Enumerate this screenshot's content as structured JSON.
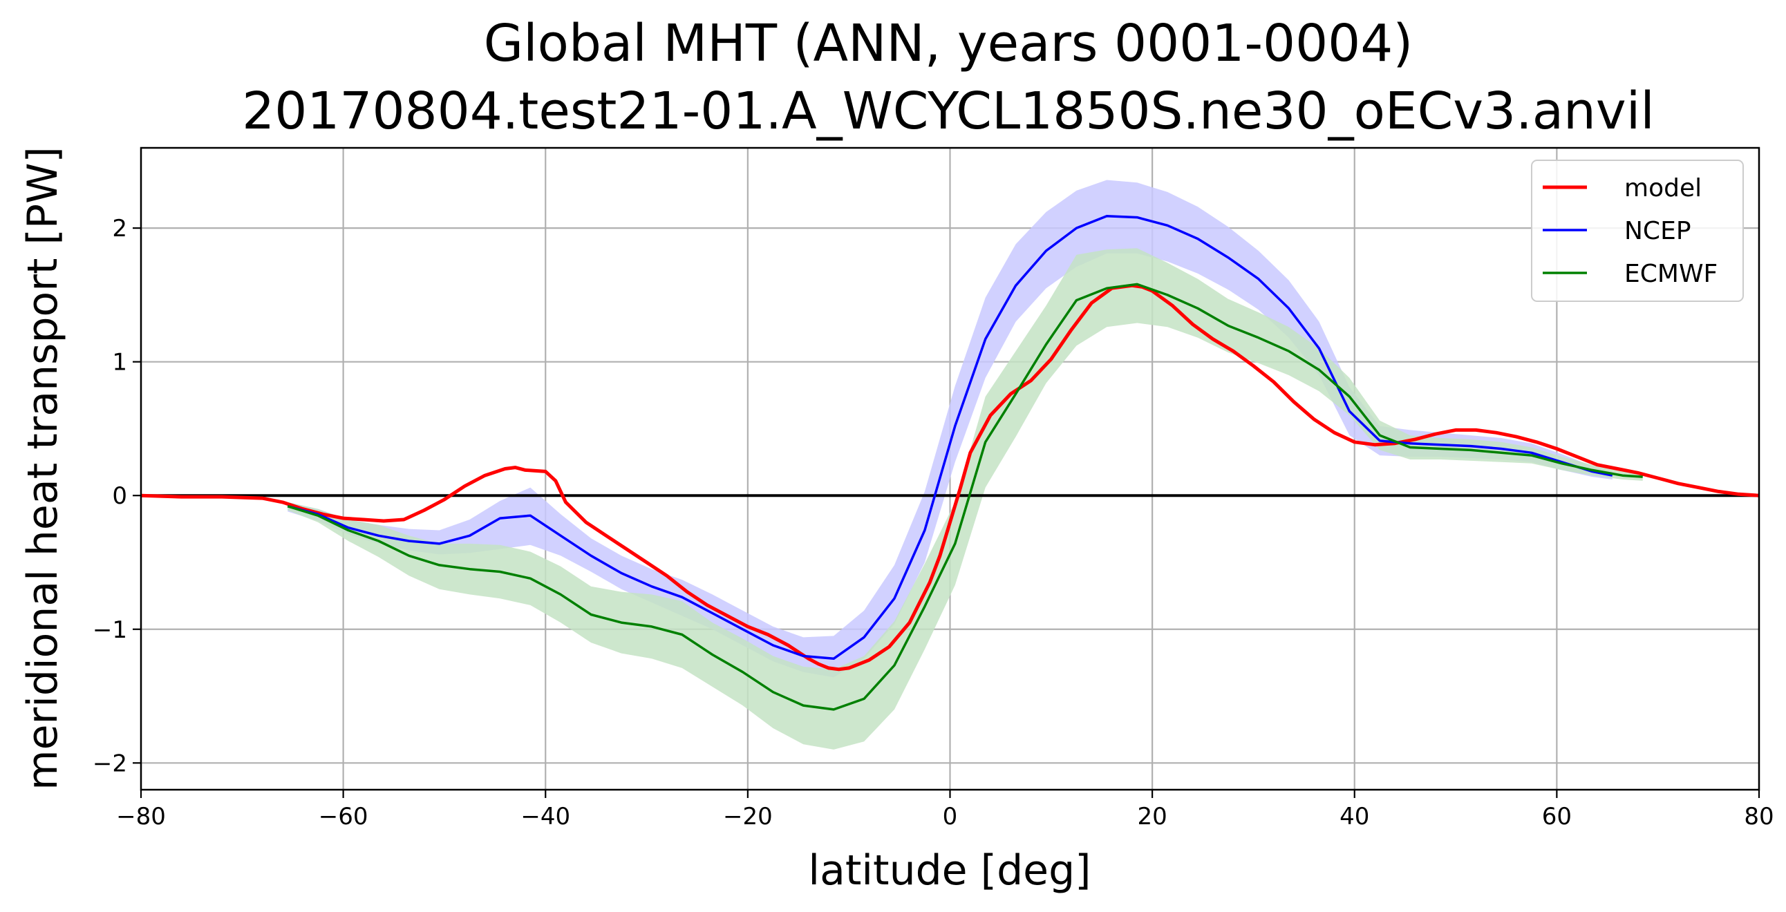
{
  "chart_data": {
    "type": "line",
    "title": [
      "Global MHT (ANN, years 0001-0004)",
      "20170804.test21-01.A_WCYCL1850S.ne30_oECv3.anvil"
    ],
    "xlabel": "latitude [deg]",
    "ylabel": "meridional heat transport [PW]",
    "xlim": [
      -80,
      80
    ],
    "ylim": [
      -2.2,
      2.6
    ],
    "xticks": [
      -80,
      -60,
      -40,
      -20,
      0,
      20,
      40,
      60,
      80
    ],
    "xtick_labels": [
      "−80",
      "−60",
      "−40",
      "−20",
      "0",
      "20",
      "40",
      "60",
      "80"
    ],
    "yticks": [
      -2,
      -1,
      0,
      1,
      2
    ],
    "ytick_labels": [
      "−2",
      "−1",
      "0",
      "1",
      "2"
    ],
    "grid": true,
    "legend_position": "top-right",
    "zero_line": true,
    "series": [
      {
        "name": "model",
        "color": "#ff0000",
        "x": [
          -80,
          -76,
          -72,
          -68,
          -66,
          -64,
          -62,
          -60,
          -58,
          -56,
          -54,
          -52,
          -50,
          -48,
          -46,
          -44,
          -43,
          -42,
          -40,
          -39,
          -38,
          -36,
          -34,
          -32,
          -30,
          -28,
          -26,
          -24,
          -22,
          -20,
          -18,
          -16,
          -14,
          -13,
          -12,
          -11,
          -10,
          -8,
          -6,
          -4,
          -2,
          -1,
          0,
          1,
          2,
          4,
          6,
          8,
          10,
          12,
          14,
          16,
          18,
          19,
          20,
          22,
          24,
          26,
          28,
          30,
          32,
          34,
          36,
          38,
          40,
          42,
          44,
          46,
          48,
          50,
          52,
          54,
          56,
          58,
          60,
          62,
          64,
          66,
          68,
          70,
          72,
          74,
          76,
          78,
          80
        ],
        "y": [
          0.0,
          -0.01,
          -0.01,
          -0.02,
          -0.05,
          -0.1,
          -0.14,
          -0.17,
          -0.18,
          -0.19,
          -0.18,
          -0.11,
          -0.03,
          0.07,
          0.15,
          0.2,
          0.21,
          0.19,
          0.18,
          0.11,
          -0.05,
          -0.2,
          -0.3,
          -0.4,
          -0.5,
          -0.6,
          -0.72,
          -0.82,
          -0.9,
          -0.98,
          -1.04,
          -1.12,
          -1.22,
          -1.26,
          -1.29,
          -1.3,
          -1.29,
          -1.23,
          -1.13,
          -0.95,
          -0.65,
          -0.45,
          -0.2,
          0.05,
          0.32,
          0.6,
          0.76,
          0.86,
          1.02,
          1.24,
          1.44,
          1.55,
          1.57,
          1.56,
          1.53,
          1.42,
          1.28,
          1.17,
          1.08,
          0.97,
          0.85,
          0.7,
          0.57,
          0.47,
          0.4,
          0.38,
          0.39,
          0.42,
          0.46,
          0.49,
          0.49,
          0.47,
          0.44,
          0.4,
          0.35,
          0.29,
          0.23,
          0.2,
          0.17,
          0.13,
          0.09,
          0.06,
          0.03,
          0.01,
          0.0
        ]
      },
      {
        "name": "NCEP",
        "color": "#0000ff",
        "band_color": "#c9c9ff",
        "x": [
          -65.5,
          -62.5,
          -59.5,
          -56.5,
          -53.5,
          -50.5,
          -47.5,
          -44.5,
          -41.5,
          -38.5,
          -35.5,
          -32.5,
          -29.5,
          -26.5,
          -23.5,
          -20.5,
          -17.5,
          -14.5,
          -11.5,
          -8.5,
          -5.5,
          -2.5,
          0.5,
          3.5,
          6.5,
          9.5,
          12.5,
          15.5,
          18.5,
          21.5,
          24.5,
          27.5,
          30.5,
          33.5,
          36.5,
          39.5,
          42.5,
          45.5,
          48.5,
          51.5,
          54.5,
          57.5,
          60.5,
          63.5,
          65.5
        ],
        "y": [
          -0.08,
          -0.14,
          -0.24,
          -0.3,
          -0.34,
          -0.36,
          -0.3,
          -0.17,
          -0.15,
          -0.3,
          -0.45,
          -0.58,
          -0.68,
          -0.76,
          -0.88,
          -1.0,
          -1.12,
          -1.2,
          -1.22,
          -1.06,
          -0.77,
          -0.26,
          0.52,
          1.17,
          1.57,
          1.83,
          2.0,
          2.09,
          2.08,
          2.02,
          1.92,
          1.78,
          1.62,
          1.4,
          1.1,
          0.63,
          0.41,
          0.39,
          0.38,
          0.37,
          0.35,
          0.32,
          0.25,
          0.18,
          0.15
        ],
        "band_lower": [
          -0.12,
          -0.19,
          -0.29,
          -0.36,
          -0.41,
          -0.44,
          -0.43,
          -0.4,
          -0.37,
          -0.45,
          -0.57,
          -0.7,
          -0.8,
          -0.9,
          -1.0,
          -1.12,
          -1.24,
          -1.32,
          -1.36,
          -1.22,
          -0.96,
          -0.5,
          0.25,
          0.88,
          1.3,
          1.55,
          1.71,
          1.81,
          1.81,
          1.75,
          1.66,
          1.54,
          1.39,
          1.18,
          0.9,
          0.45,
          0.3,
          0.29,
          0.29,
          0.28,
          0.27,
          0.25,
          0.19,
          0.14,
          0.12
        ],
        "band_upper": [
          -0.05,
          -0.1,
          -0.18,
          -0.22,
          -0.25,
          -0.26,
          -0.18,
          -0.04,
          0.06,
          -0.14,
          -0.32,
          -0.45,
          -0.55,
          -0.63,
          -0.74,
          -0.86,
          -0.98,
          -1.06,
          -1.05,
          -0.86,
          -0.52,
          0.03,
          0.82,
          1.48,
          1.88,
          2.12,
          2.28,
          2.36,
          2.34,
          2.27,
          2.16,
          2.01,
          1.83,
          1.61,
          1.3,
          0.81,
          0.52,
          0.49,
          0.47,
          0.45,
          0.43,
          0.39,
          0.31,
          0.22,
          0.18
        ]
      },
      {
        "name": "ECMWF",
        "color": "#008000",
        "band_color": "#c4e3c4",
        "x": [
          -65.5,
          -62.5,
          -59.5,
          -56.5,
          -53.5,
          -50.5,
          -47.5,
          -44.5,
          -41.5,
          -38.5,
          -35.5,
          -32.5,
          -29.5,
          -26.5,
          -23.5,
          -20.5,
          -17.5,
          -14.5,
          -11.5,
          -8.5,
          -5.5,
          -2.5,
          0.5,
          3.5,
          6.5,
          9.5,
          12.5,
          15.5,
          18.5,
          21.5,
          24.5,
          27.5,
          30.5,
          33.5,
          36.5,
          39.5,
          42.5,
          45.5,
          48.5,
          51.5,
          54.5,
          57.5,
          60.5,
          63.5,
          66.5,
          68.5
        ],
        "y": [
          -0.08,
          -0.15,
          -0.26,
          -0.34,
          -0.45,
          -0.52,
          -0.55,
          -0.57,
          -0.62,
          -0.74,
          -0.89,
          -0.95,
          -0.98,
          -1.04,
          -1.19,
          -1.32,
          -1.47,
          -1.57,
          -1.6,
          -1.52,
          -1.27,
          -0.83,
          -0.36,
          0.4,
          0.76,
          1.13,
          1.46,
          1.55,
          1.58,
          1.5,
          1.4,
          1.27,
          1.18,
          1.08,
          0.94,
          0.74,
          0.45,
          0.36,
          0.35,
          0.34,
          0.32,
          0.3,
          0.24,
          0.19,
          0.15,
          0.14
        ],
        "band_lower": [
          -0.11,
          -0.2,
          -0.34,
          -0.46,
          -0.6,
          -0.7,
          -0.74,
          -0.77,
          -0.82,
          -0.95,
          -1.1,
          -1.18,
          -1.22,
          -1.29,
          -1.43,
          -1.57,
          -1.74,
          -1.86,
          -1.9,
          -1.84,
          -1.6,
          -1.15,
          -0.67,
          0.06,
          0.44,
          0.84,
          1.12,
          1.26,
          1.29,
          1.26,
          1.18,
          1.07,
          0.99,
          0.9,
          0.78,
          0.6,
          0.34,
          0.27,
          0.27,
          0.26,
          0.25,
          0.24,
          0.19,
          0.15,
          0.12,
          0.11
        ],
        "band_upper": [
          -0.05,
          -0.1,
          -0.18,
          -0.22,
          -0.3,
          -0.36,
          -0.36,
          -0.37,
          -0.42,
          -0.53,
          -0.68,
          -0.72,
          -0.74,
          -0.79,
          -0.95,
          -1.07,
          -1.2,
          -1.28,
          -1.3,
          -1.2,
          -0.94,
          -0.51,
          -0.05,
          0.74,
          1.08,
          1.42,
          1.8,
          1.84,
          1.85,
          1.74,
          1.62,
          1.47,
          1.37,
          1.26,
          1.1,
          0.88,
          0.56,
          0.45,
          0.43,
          0.42,
          0.4,
          0.36,
          0.29,
          0.23,
          0.18,
          0.17
        ]
      }
    ]
  }
}
